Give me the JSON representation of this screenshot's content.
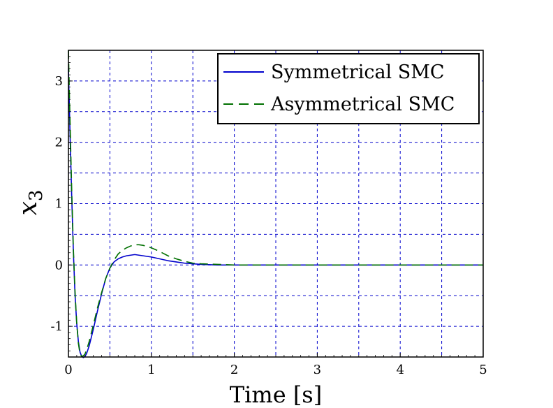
{
  "chart_data": {
    "type": "line",
    "title": "",
    "xlabel": "Time [s]",
    "ylabel_base": "x",
    "ylabel_sub": "3",
    "xlim": [
      0,
      5
    ],
    "ylim": [
      -1.5,
      3.5
    ],
    "xticks": [
      0,
      1,
      2,
      3,
      4,
      5
    ],
    "xtick_labels": [
      "0",
      "1",
      "2",
      "3",
      "4",
      "5"
    ],
    "yticks": [
      -1,
      0,
      1,
      2,
      3
    ],
    "ytick_labels": [
      "-1",
      "0",
      "1",
      "2",
      "3"
    ],
    "grid": true,
    "legend_position": "top-right",
    "series": [
      {
        "name": "Symmetrical SMC",
        "color": "#0000cc",
        "style": "solid",
        "x": [
          0,
          0.02,
          0.04,
          0.06,
          0.08,
          0.1,
          0.12,
          0.14,
          0.16,
          0.18,
          0.2,
          0.22,
          0.25,
          0.3,
          0.35,
          0.4,
          0.45,
          0.5,
          0.55,
          0.6,
          0.65,
          0.7,
          0.75,
          0.8,
          0.85,
          0.9,
          0.95,
          1.0,
          1.1,
          1.2,
          1.3,
          1.4,
          1.5,
          1.6,
          1.8,
          2.0,
          2.5,
          3.0,
          3.5,
          4.0,
          4.5,
          5.0
        ],
        "y": [
          3.2,
          2.1,
          1.1,
          0.2,
          -0.5,
          -0.95,
          -1.25,
          -1.42,
          -1.49,
          -1.51,
          -1.49,
          -1.44,
          -1.32,
          -1.05,
          -0.75,
          -0.47,
          -0.22,
          -0.05,
          0.05,
          0.1,
          0.13,
          0.15,
          0.16,
          0.17,
          0.16,
          0.15,
          0.14,
          0.13,
          0.1,
          0.07,
          0.05,
          0.03,
          0.02,
          0.01,
          0.0,
          0.0,
          0.0,
          0.0,
          0.0,
          0.0,
          0.0,
          0.0
        ]
      },
      {
        "name": "Asymmetrical SMC",
        "color": "#007000",
        "style": "dashed",
        "x": [
          0,
          0.02,
          0.04,
          0.06,
          0.08,
          0.1,
          0.12,
          0.14,
          0.16,
          0.18,
          0.2,
          0.22,
          0.25,
          0.3,
          0.35,
          0.4,
          0.45,
          0.5,
          0.55,
          0.6,
          0.65,
          0.7,
          0.75,
          0.8,
          0.85,
          0.9,
          0.95,
          1.0,
          1.1,
          1.2,
          1.3,
          1.4,
          1.5,
          1.6,
          1.8,
          2.0,
          2.5,
          3.0,
          3.5,
          4.0,
          4.5,
          5.0
        ],
        "y": [
          3.5,
          2.3,
          1.2,
          0.25,
          -0.45,
          -0.95,
          -1.28,
          -1.45,
          -1.49,
          -1.48,
          -1.45,
          -1.38,
          -1.25,
          -0.98,
          -0.7,
          -0.45,
          -0.22,
          -0.05,
          0.08,
          0.18,
          0.24,
          0.28,
          0.31,
          0.33,
          0.33,
          0.32,
          0.3,
          0.28,
          0.22,
          0.15,
          0.1,
          0.06,
          0.03,
          0.02,
          0.01,
          0.0,
          0.0,
          0.0,
          0.0,
          0.0,
          0.0,
          0.0
        ]
      }
    ]
  }
}
